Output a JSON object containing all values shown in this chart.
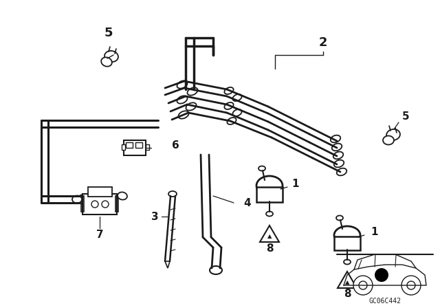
{
  "bg_color": "#ffffff",
  "line_color": "#1a1a1a",
  "watermark": "GC06C442",
  "fig_width": 6.4,
  "fig_height": 4.48,
  "dpi": 100
}
